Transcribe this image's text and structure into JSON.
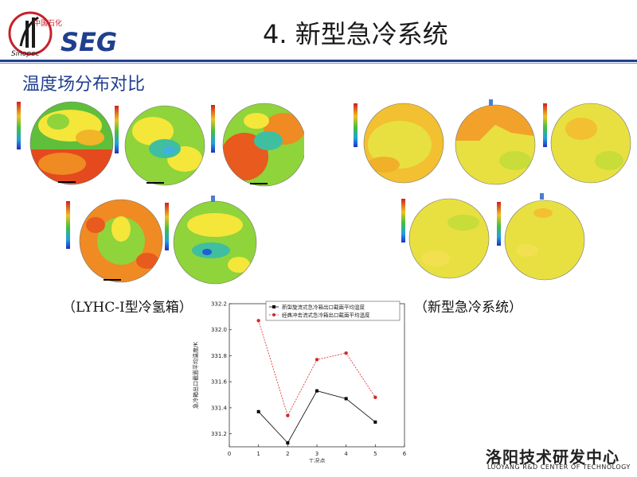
{
  "header": {
    "logo_brand": "SEG",
    "logo_company": "Sinopec",
    "logo_cn": "中国石化",
    "title": "4. 新型急冷系统"
  },
  "subtitle": "温度场分布对比",
  "captions": {
    "left": "（LYHC-Ⅰ型冷氢箱）",
    "right": "（新型急冷系统）"
  },
  "colors": {
    "accent": "#1f3f8f",
    "series1": "#000000",
    "series2": "#d42a2a"
  },
  "chart_data": {
    "type": "line",
    "xlabel": "工况点",
    "ylabel": "急冷箱出口截面平均温度/K",
    "xlim": [
      0,
      6
    ],
    "ylim": [
      331.1,
      332.2
    ],
    "xticks": [
      "0",
      "1",
      "2",
      "3",
      "4",
      "5",
      "6"
    ],
    "yticks": [
      "331.2",
      "331.4",
      "331.6",
      "331.8",
      "332.0",
      "332.2"
    ],
    "grid": false,
    "legend_position": "top",
    "x": [
      1,
      2,
      3,
      4,
      5
    ],
    "series": [
      {
        "name": "新型旋流式急冷箱出口截面平均温度",
        "values": [
          331.37,
          331.13,
          331.53,
          331.47,
          331.29
        ]
      },
      {
        "name": "经典冲击流式急冷箱出口截面平均温度",
        "values": [
          332.07,
          331.34,
          331.77,
          331.82,
          331.48
        ]
      }
    ]
  },
  "footer": {
    "cn": "洛阳技术研发中心",
    "en": "LUOYANG R&D CENTER OF TECHNOLOGY"
  }
}
